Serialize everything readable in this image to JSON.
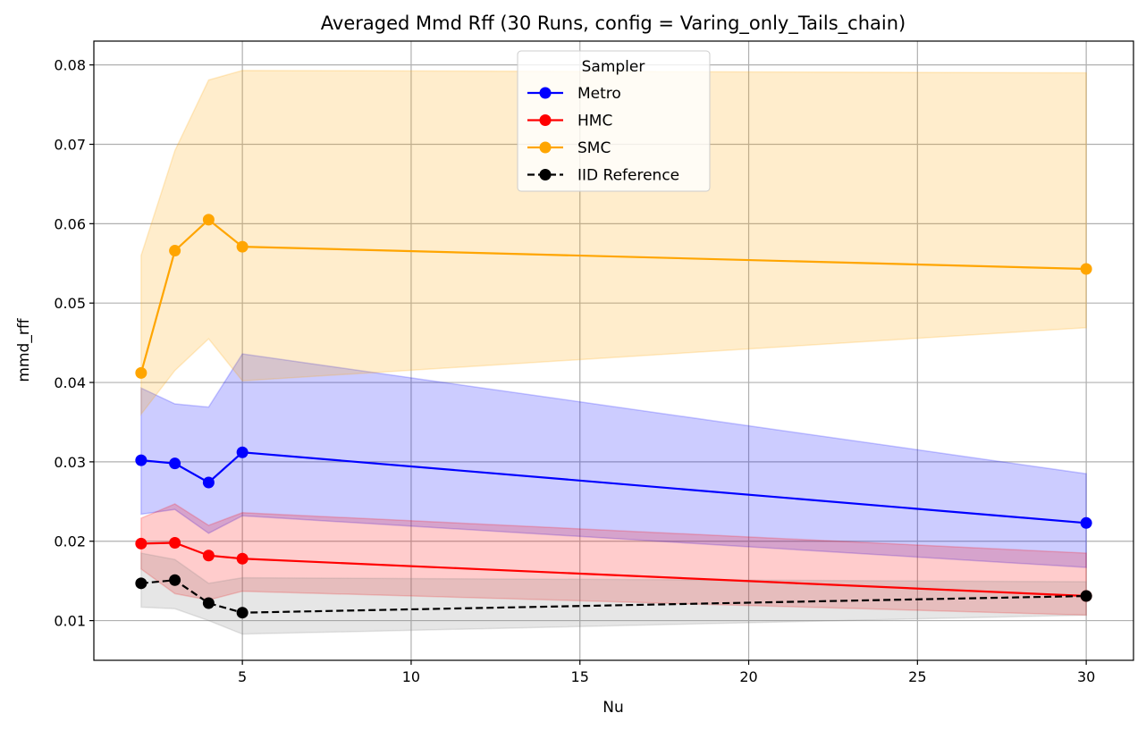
{
  "chart_data": {
    "type": "line",
    "title": "Averaged Mmd Rff (30 Runs, config = Varing_only_Tails_chain)",
    "xlabel": "Nu",
    "ylabel": "mmd_rff",
    "xlim": [
      0.6,
      31.4
    ],
    "ylim": [
      0.005,
      0.083
    ],
    "xticks": [
      5,
      10,
      15,
      20,
      25,
      30
    ],
    "yticks": [
      0.01,
      0.02,
      0.03,
      0.04,
      0.05,
      0.06,
      0.07,
      0.08
    ],
    "xtick_labels": [
      "5",
      "10",
      "15",
      "20",
      "25",
      "30"
    ],
    "ytick_labels": [
      "0.01",
      "0.02",
      "0.03",
      "0.04",
      "0.05",
      "0.06",
      "0.07",
      "0.08"
    ],
    "grid": true,
    "legend": {
      "title": "Sampler",
      "position": "top-center"
    },
    "x": [
      2,
      3,
      4,
      5,
      30
    ],
    "series": [
      {
        "name": "Metro",
        "color": "#0000ff",
        "linestyle": "solid",
        "values": [
          0.0302,
          0.0298,
          0.0274,
          0.0312,
          0.0223
        ],
        "lower": [
          0.0234,
          0.024,
          0.021,
          0.0232,
          0.0167
        ],
        "upper": [
          0.0393,
          0.0373,
          0.0369,
          0.0436,
          0.0285
        ],
        "band_color": "#0000ff"
      },
      {
        "name": "HMC",
        "color": "#ff0000",
        "linestyle": "solid",
        "values": [
          0.0197,
          0.0198,
          0.0182,
          0.0178,
          0.0131
        ],
        "lower": [
          0.0165,
          0.0134,
          0.0126,
          0.0137,
          0.0107
        ],
        "upper": [
          0.0229,
          0.0247,
          0.022,
          0.0236,
          0.0185
        ],
        "band_color": "#ff0000"
      },
      {
        "name": "SMC",
        "color": "#ffa500",
        "linestyle": "solid",
        "values": [
          0.0412,
          0.0566,
          0.0605,
          0.0571,
          0.0543
        ],
        "lower": [
          0.036,
          0.0415,
          0.0455,
          0.0402,
          0.0469
        ],
        "upper": [
          0.056,
          0.0692,
          0.0781,
          0.0793,
          0.079
        ],
        "band_color": "#ffa500"
      },
      {
        "name": "IID Reference",
        "color": "#000000",
        "linestyle": "dashed",
        "values": [
          0.0147,
          0.0151,
          0.0122,
          0.011,
          0.0131
        ],
        "lower": [
          0.0117,
          0.0115,
          0.01,
          0.0083,
          0.0107
        ],
        "upper": [
          0.0185,
          0.0177,
          0.0147,
          0.0154,
          0.0149
        ],
        "band_color": "#808080"
      }
    ]
  }
}
